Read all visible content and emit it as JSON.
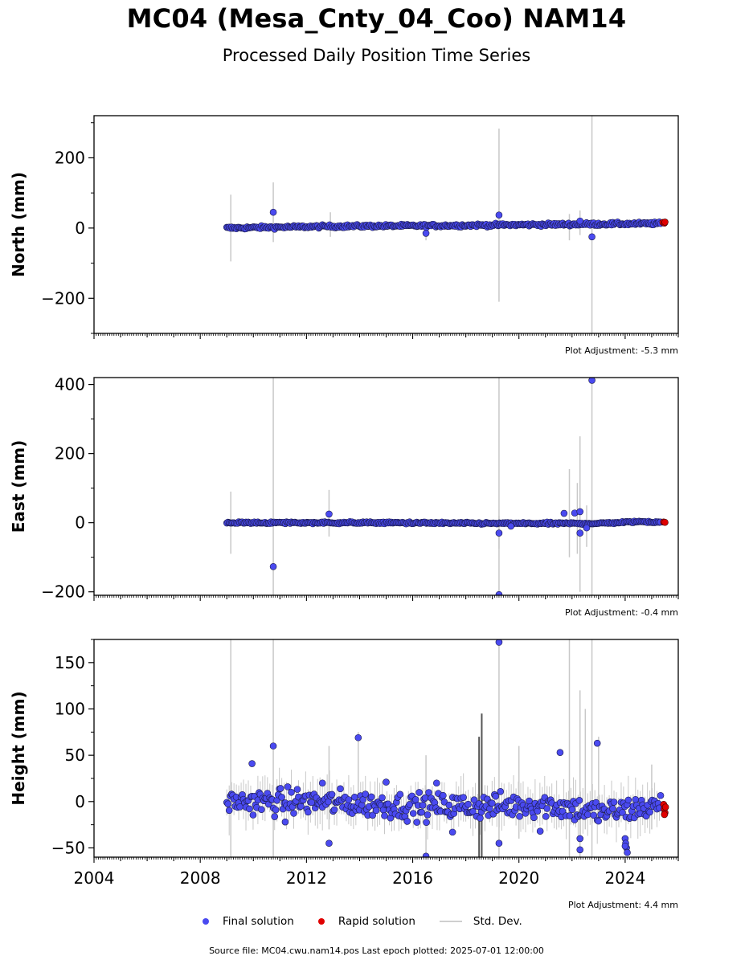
{
  "title": "MC04 (Mesa_Cnty_04_Coo) NAM14",
  "subtitle": "Processed Daily Position Time Series",
  "legend": {
    "final": "Final solution",
    "rapid": "Rapid solution",
    "std": "Std. Dev."
  },
  "source": "Source file: MC04.cwu.nam14.pos  Last epoch plotted: 2025-07-01 12:00:00",
  "colors": {
    "final": "#4a4af0",
    "rapid": "#e00000",
    "std": "#cccccc",
    "edge": "#1a1a4a"
  },
  "chart_data": [
    {
      "type": "scatter",
      "ylabel": "North (mm)",
      "adjustment": "Plot Adjustment: -5.3 mm",
      "ylim": [
        -300,
        320
      ],
      "yticks": [
        -200,
        0,
        200
      ],
      "ytick_labels": [
        "−200",
        "0",
        "200"
      ],
      "xlim": [
        2004,
        2026
      ],
      "noise": 3,
      "trend": [
        [
          2009.0,
          0
        ],
        [
          2013,
          5
        ],
        [
          2017,
          7
        ],
        [
          2021,
          10
        ],
        [
          2025.3,
          13
        ]
      ],
      "outliers": [
        [
          2010.75,
          45
        ],
        [
          2019.25,
          37
        ],
        [
          2016.5,
          -15
        ],
        [
          2022.3,
          20
        ],
        [
          2022.75,
          -25
        ]
      ],
      "std_bars": [
        [
          2009.15,
          -95,
          95
        ],
        [
          2010.75,
          -40,
          130
        ],
        [
          2012.9,
          -25,
          45
        ],
        [
          2019.25,
          -210,
          283
        ],
        [
          2022.75,
          -300,
          320
        ],
        [
          2022.3,
          -20,
          50
        ],
        [
          2021.9,
          -35,
          40
        ],
        [
          2016.5,
          -35,
          10
        ]
      ],
      "rapid": [
        [
          2025.42,
          16
        ],
        [
          2025.48,
          14
        ],
        [
          2025.5,
          17
        ]
      ]
    },
    {
      "type": "scatter",
      "ylabel": "East (mm)",
      "adjustment": "Plot Adjustment: -0.4 mm",
      "ylim": [
        -210,
        420
      ],
      "yticks": [
        -200,
        0,
        200,
        400
      ],
      "ytick_labels": [
        "−200",
        "0",
        "200",
        "400"
      ],
      "xlim": [
        2004,
        2026
      ],
      "noise": 2,
      "trend": [
        [
          2009.0,
          0
        ],
        [
          2015,
          0
        ],
        [
          2019,
          -2
        ],
        [
          2023,
          -2
        ],
        [
          2024.5,
          3
        ],
        [
          2025.3,
          2
        ]
      ],
      "outliers": [
        [
          2010.75,
          -127
        ],
        [
          2012.85,
          25
        ],
        [
          2019.25,
          -30
        ],
        [
          2019.25,
          -208
        ],
        [
          2019.7,
          -10
        ],
        [
          2021.7,
          27
        ],
        [
          2022.1,
          28
        ],
        [
          2022.3,
          32
        ],
        [
          2022.3,
          -30
        ],
        [
          2022.55,
          -15
        ],
        [
          2022.75,
          412
        ]
      ],
      "std_bars": [
        [
          2009.15,
          -90,
          90
        ],
        [
          2010.75,
          -210,
          420
        ],
        [
          2012.85,
          -40,
          95
        ],
        [
          2019.25,
          -210,
          420
        ],
        [
          2019.25,
          -75,
          20
        ],
        [
          2022.75,
          -210,
          420
        ],
        [
          2022.3,
          -200,
          250
        ],
        [
          2021.9,
          -100,
          155
        ],
        [
          2022.55,
          -70,
          50
        ],
        [
          2022.2,
          -90,
          115
        ]
      ],
      "rapid": [
        [
          2025.45,
          2
        ],
        [
          2025.5,
          1
        ]
      ]
    },
    {
      "type": "scatter",
      "ylabel": "Height (mm)",
      "adjustment": "Plot Adjustment: 4.4 mm",
      "xlabel_ticks": [
        "2004",
        "2008",
        "2012",
        "2016",
        "2020",
        "2024"
      ],
      "xticks": [
        2004,
        2008,
        2012,
        2016,
        2020,
        2024
      ],
      "ylim": [
        -60,
        175
      ],
      "yticks": [
        -50,
        0,
        50,
        100,
        150
      ],
      "ytick_labels": [
        "−50",
        "0",
        "50",
        "100",
        "150"
      ],
      "xlim": [
        2004,
        2026
      ],
      "noise": 10,
      "trend": [
        [
          2009.0,
          0
        ],
        [
          2012,
          0
        ],
        [
          2016,
          -5
        ],
        [
          2019,
          -5
        ],
        [
          2021,
          -3
        ],
        [
          2023,
          -12
        ],
        [
          2025.3,
          -5
        ]
      ],
      "outliers": [
        [
          2009.95,
          41
        ],
        [
          2010.75,
          60
        ],
        [
          2011.2,
          -22
        ],
        [
          2012.85,
          -45
        ],
        [
          2012.6,
          20
        ],
        [
          2013.95,
          69
        ],
        [
          2015,
          21
        ],
        [
          2016.5,
          -59
        ],
        [
          2016.9,
          20
        ],
        [
          2017.5,
          -33
        ],
        [
          2019.25,
          -45
        ],
        [
          2019.25,
          172
        ],
        [
          2020.8,
          -32
        ],
        [
          2021.55,
          53
        ],
        [
          2022.3,
          -52
        ],
        [
          2022.3,
          -40
        ],
        [
          2022.95,
          63
        ],
        [
          2024.0,
          -40
        ],
        [
          2024.02,
          -45
        ],
        [
          2024.05,
          -50
        ],
        [
          2024.08,
          -55
        ],
        [
          2024.0,
          -48
        ]
      ],
      "std_bars": [
        [
          2009.15,
          -60,
          175
        ],
        [
          2010.75,
          -60,
          175
        ],
        [
          2012.85,
          -30,
          60
        ],
        [
          2013.95,
          -10,
          75
        ],
        [
          2016.5,
          -60,
          50
        ],
        [
          2018.6,
          -60,
          95
        ],
        [
          2018.5,
          -60,
          70
        ],
        [
          2019.25,
          -60,
          175
        ],
        [
          2020,
          -40,
          60
        ],
        [
          2021.9,
          -60,
          175
        ],
        [
          2022.3,
          -60,
          120
        ],
        [
          2022.75,
          -60,
          175
        ],
        [
          2022.5,
          -30,
          100
        ],
        [
          2023,
          -20,
          70
        ],
        [
          2025,
          -30,
          40
        ]
      ],
      "rapid": [
        [
          2025.45,
          -3
        ],
        [
          2025.47,
          -8
        ],
        [
          2025.5,
          -12
        ],
        [
          2025.48,
          -14
        ],
        [
          2025.52,
          -6
        ]
      ]
    }
  ]
}
